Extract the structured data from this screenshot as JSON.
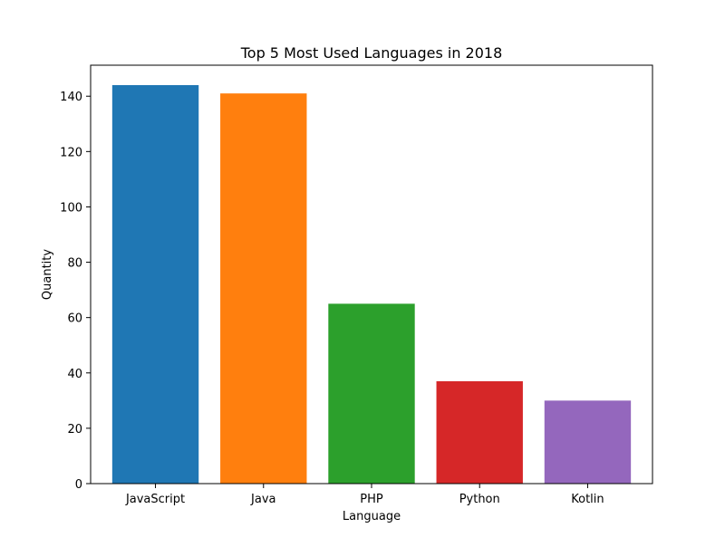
{
  "chart_data": {
    "type": "bar",
    "title": "Top 5 Most Used Languages in 2018",
    "xlabel": "Language",
    "ylabel": "Quantity",
    "categories": [
      "JavaScript",
      "Java",
      "PHP",
      "Python",
      "Kotlin"
    ],
    "values": [
      144,
      141,
      65,
      37,
      30
    ],
    "colors": [
      "#1f77b4",
      "#ff7f0e",
      "#2ca02c",
      "#d62728",
      "#9467bd"
    ],
    "ylim": [
      0,
      151.2
    ],
    "yticks": [
      0,
      20,
      40,
      60,
      80,
      100,
      120,
      140
    ],
    "grid": false,
    "legend": "none"
  }
}
